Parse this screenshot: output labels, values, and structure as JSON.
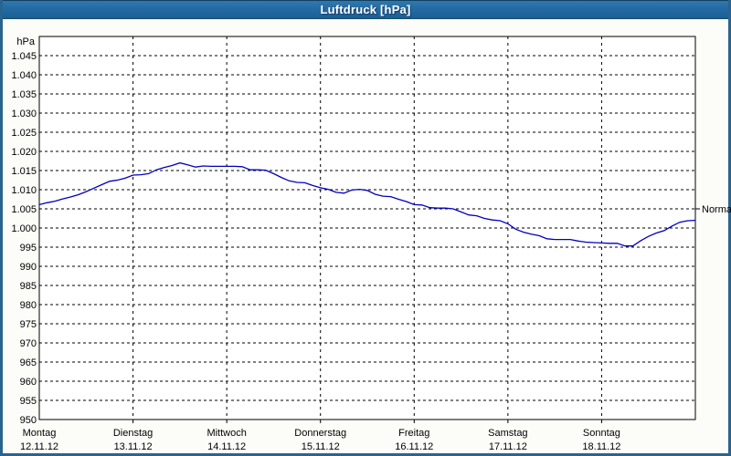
{
  "window": {
    "title": "Luftdruck [hPa]"
  },
  "chart": {
    "y_axis": {
      "unit_label": "hPa",
      "tick_labels": [
        "1.045",
        "1.040",
        "1.035",
        "1.030",
        "1.025",
        "1.020",
        "1.015",
        "1.010",
        "1.005",
        "1.000",
        "995",
        "990",
        "985",
        "980",
        "975",
        "970",
        "965",
        "960",
        "955",
        "950"
      ]
    },
    "x_axis": {
      "days": [
        {
          "name": "Montag",
          "date": "12.11.12"
        },
        {
          "name": "Dienstag",
          "date": "13.11.12"
        },
        {
          "name": "Mittwoch",
          "date": "14.11.12"
        },
        {
          "name": "Donnerstag",
          "date": "15.11.12"
        },
        {
          "name": "Freitag",
          "date": "16.11.12"
        },
        {
          "name": "Samstag",
          "date": "17.11.12"
        },
        {
          "name": "Sonntag",
          "date": "18.11.12"
        }
      ]
    },
    "normal_marker": {
      "label": "Normal",
      "value": 1005
    },
    "colors": {
      "line": "#0000c0",
      "grid": "#000000",
      "titlebar": "#2268a2",
      "frame": "#29638f",
      "plot_background": "#ffffff"
    }
  },
  "chart_data": {
    "type": "line",
    "title": "Luftdruck [hPa]",
    "ylabel": "hPa",
    "ylim": [
      950,
      1050
    ],
    "y_gridline_step": 5,
    "grid": "dashed",
    "x_start": "Montag 12.11.12 00:00",
    "x_end": "Sonntag 18.11.12 24:00",
    "x_step_hours": 2,
    "annotations": [
      {
        "label": "Normal",
        "y": 1005,
        "position": "right-axis"
      }
    ],
    "series": [
      {
        "name": "Luftdruck",
        "unit": "hPa",
        "values": [
          1006.1,
          1006.6,
          1007.0,
          1007.6,
          1008.1,
          1008.7,
          1009.5,
          1010.4,
          1011.3,
          1012.2,
          1012.5,
          1013.0,
          1013.8,
          1013.9,
          1014.2,
          1015.2,
          1015.8,
          1016.3,
          1017.0,
          1016.5,
          1015.9,
          1016.2,
          1016.1,
          1016.1,
          1016.1,
          1016.1,
          1016.0,
          1015.2,
          1015.2,
          1015.1,
          1014.2,
          1013.2,
          1012.3,
          1011.9,
          1011.8,
          1011.1,
          1010.5,
          1010.1,
          1009.3,
          1009.1,
          1009.9,
          1010.1,
          1009.8,
          1008.8,
          1008.3,
          1008.2,
          1007.5,
          1006.9,
          1006.1,
          1006.0,
          1005.3,
          1005.2,
          1005.2,
          1005.0,
          1004.2,
          1003.4,
          1003.2,
          1002.5,
          1002.1,
          1001.9,
          1001.1,
          999.7,
          998.9,
          998.4,
          998.0,
          997.2,
          997.0,
          997.0,
          997.0,
          996.6,
          996.3,
          996.2,
          996.1,
          996.0,
          996.0,
          995.3,
          995.3,
          996.7,
          997.8,
          998.7,
          999.3,
          1000.5,
          1001.5,
          1001.9,
          1002.0
        ]
      }
    ]
  }
}
